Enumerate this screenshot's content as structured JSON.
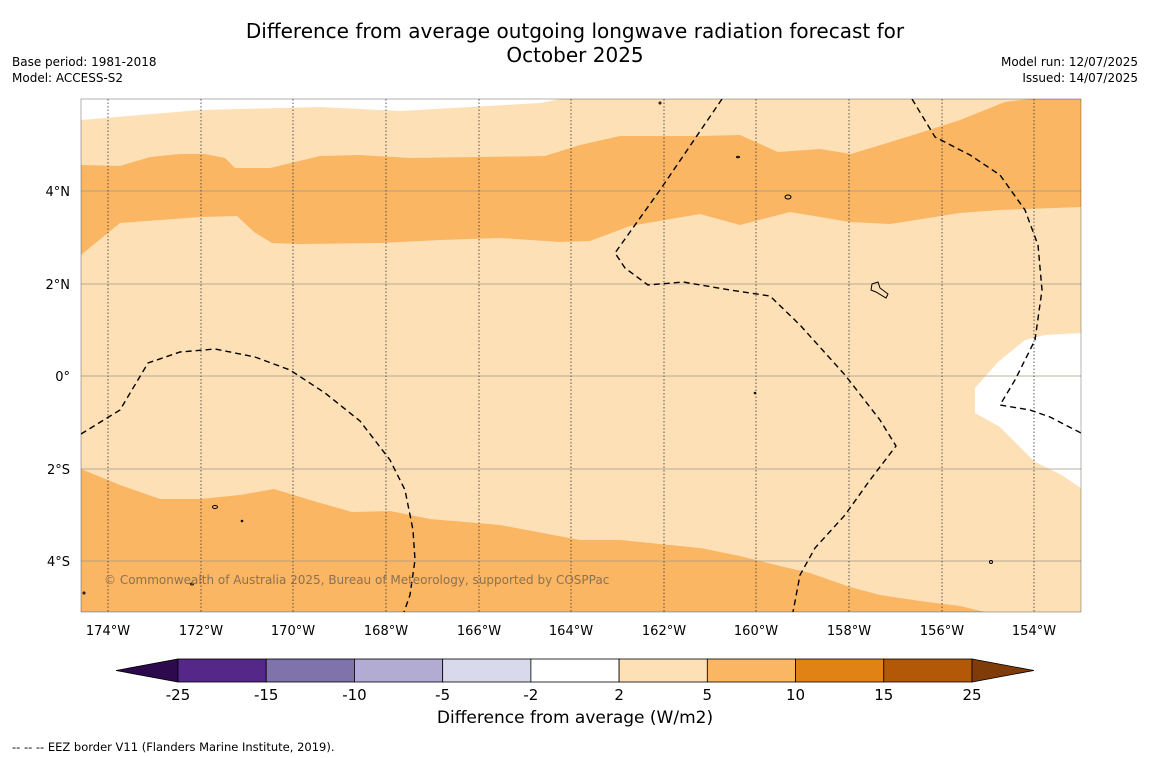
{
  "title_line1": "Difference from average outgoing longwave radiation forecast for",
  "title_line2": "October 2025",
  "base_period": "Base period: 1981-2018",
  "model": "Model: ACCESS-S2",
  "model_run": "Model run: 12/07/2025",
  "issued": "Issued: 14/07/2025",
  "copyright": "© Commonwealth of Australia 2025, Bureau of Meteorology, supported by COSPPac",
  "footer": "--  --  -- EEZ border V11 (Flanders Marine Institute, 2019).",
  "colorbar_label": "Difference from average (W/m2)",
  "lon_labels": [
    "174°W",
    "172°W",
    "170°W",
    "168°W",
    "166°W",
    "164°W",
    "162°W",
    "160°W",
    "158°W",
    "156°W",
    "154°W"
  ],
  "lat_labels": [
    "4°N",
    "2°N",
    "0°",
    "2°S",
    "4°S"
  ],
  "colorbar": {
    "ticks": [
      "-25",
      "-15",
      "-10",
      "-5",
      "-2",
      "2",
      "5",
      "10",
      "15",
      "25"
    ],
    "colors": [
      "#2d0a4e",
      "#542788",
      "#8073ac",
      "#b2abd2",
      "#d8daeb",
      "#ffffff",
      "#fde0b6",
      "#fbb663",
      "#e08214",
      "#b35806",
      "#7f3b08"
    ]
  }
}
